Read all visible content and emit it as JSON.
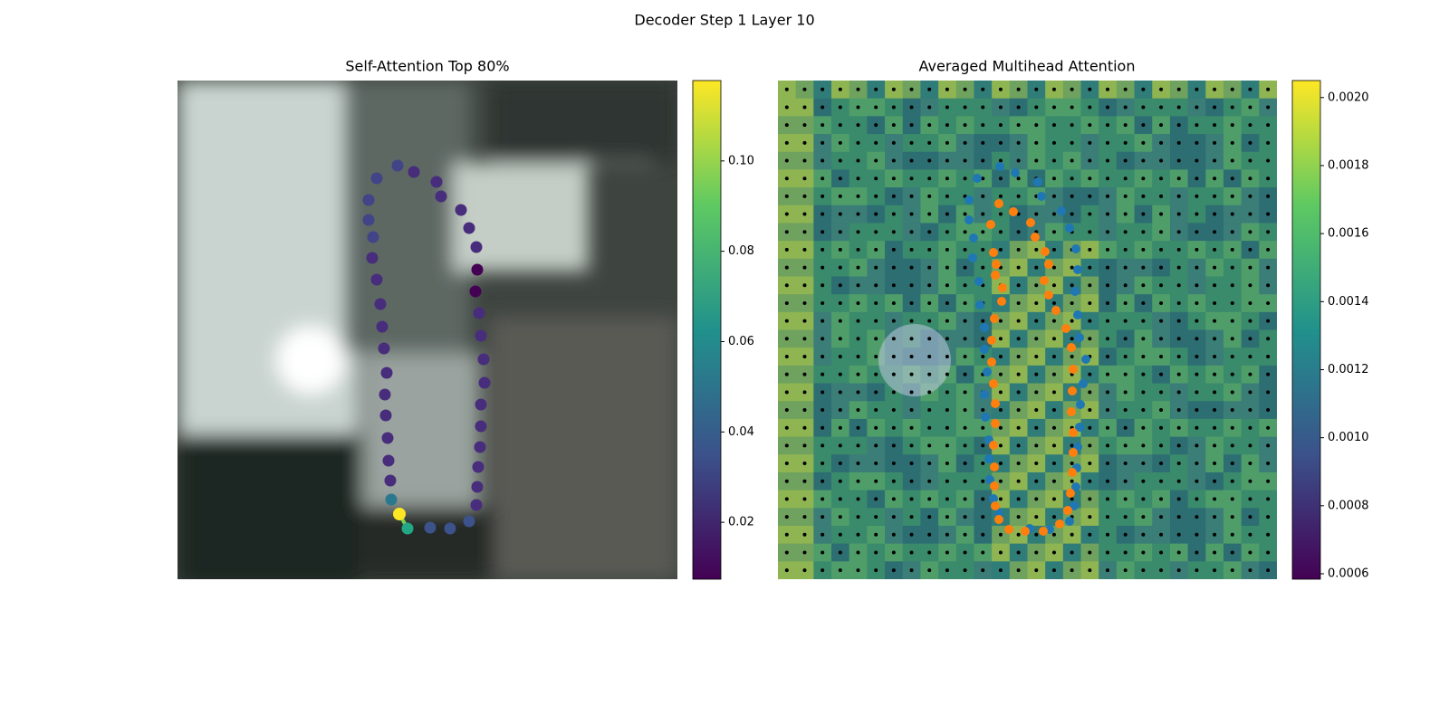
{
  "title": "Decoder Step 1 Layer 10",
  "chart_data": [
    {
      "type": "image",
      "title": "Self-Attention Top 80%",
      "colorbar": {
        "lim": [
          0.0074,
          0.1178
        ],
        "ticks": [
          0.02,
          0.04,
          0.06,
          0.08,
          {
            "value": 0.1,
            "label": "0.10"
          }
        ]
      }
    },
    {
      "type": "image",
      "title": "Averaged Multihead Attention",
      "colorbar": {
        "lim": [
          0.000584,
          0.00205
        ],
        "ticks": [
          0.0006,
          0.0008,
          {
            "value": 0.001,
            "label": "0.0010"
          },
          0.0012,
          0.0014,
          0.0016,
          0.0018,
          {
            "value": 0.002,
            "label": "0.0020"
          }
        ]
      }
    }
  ]
}
